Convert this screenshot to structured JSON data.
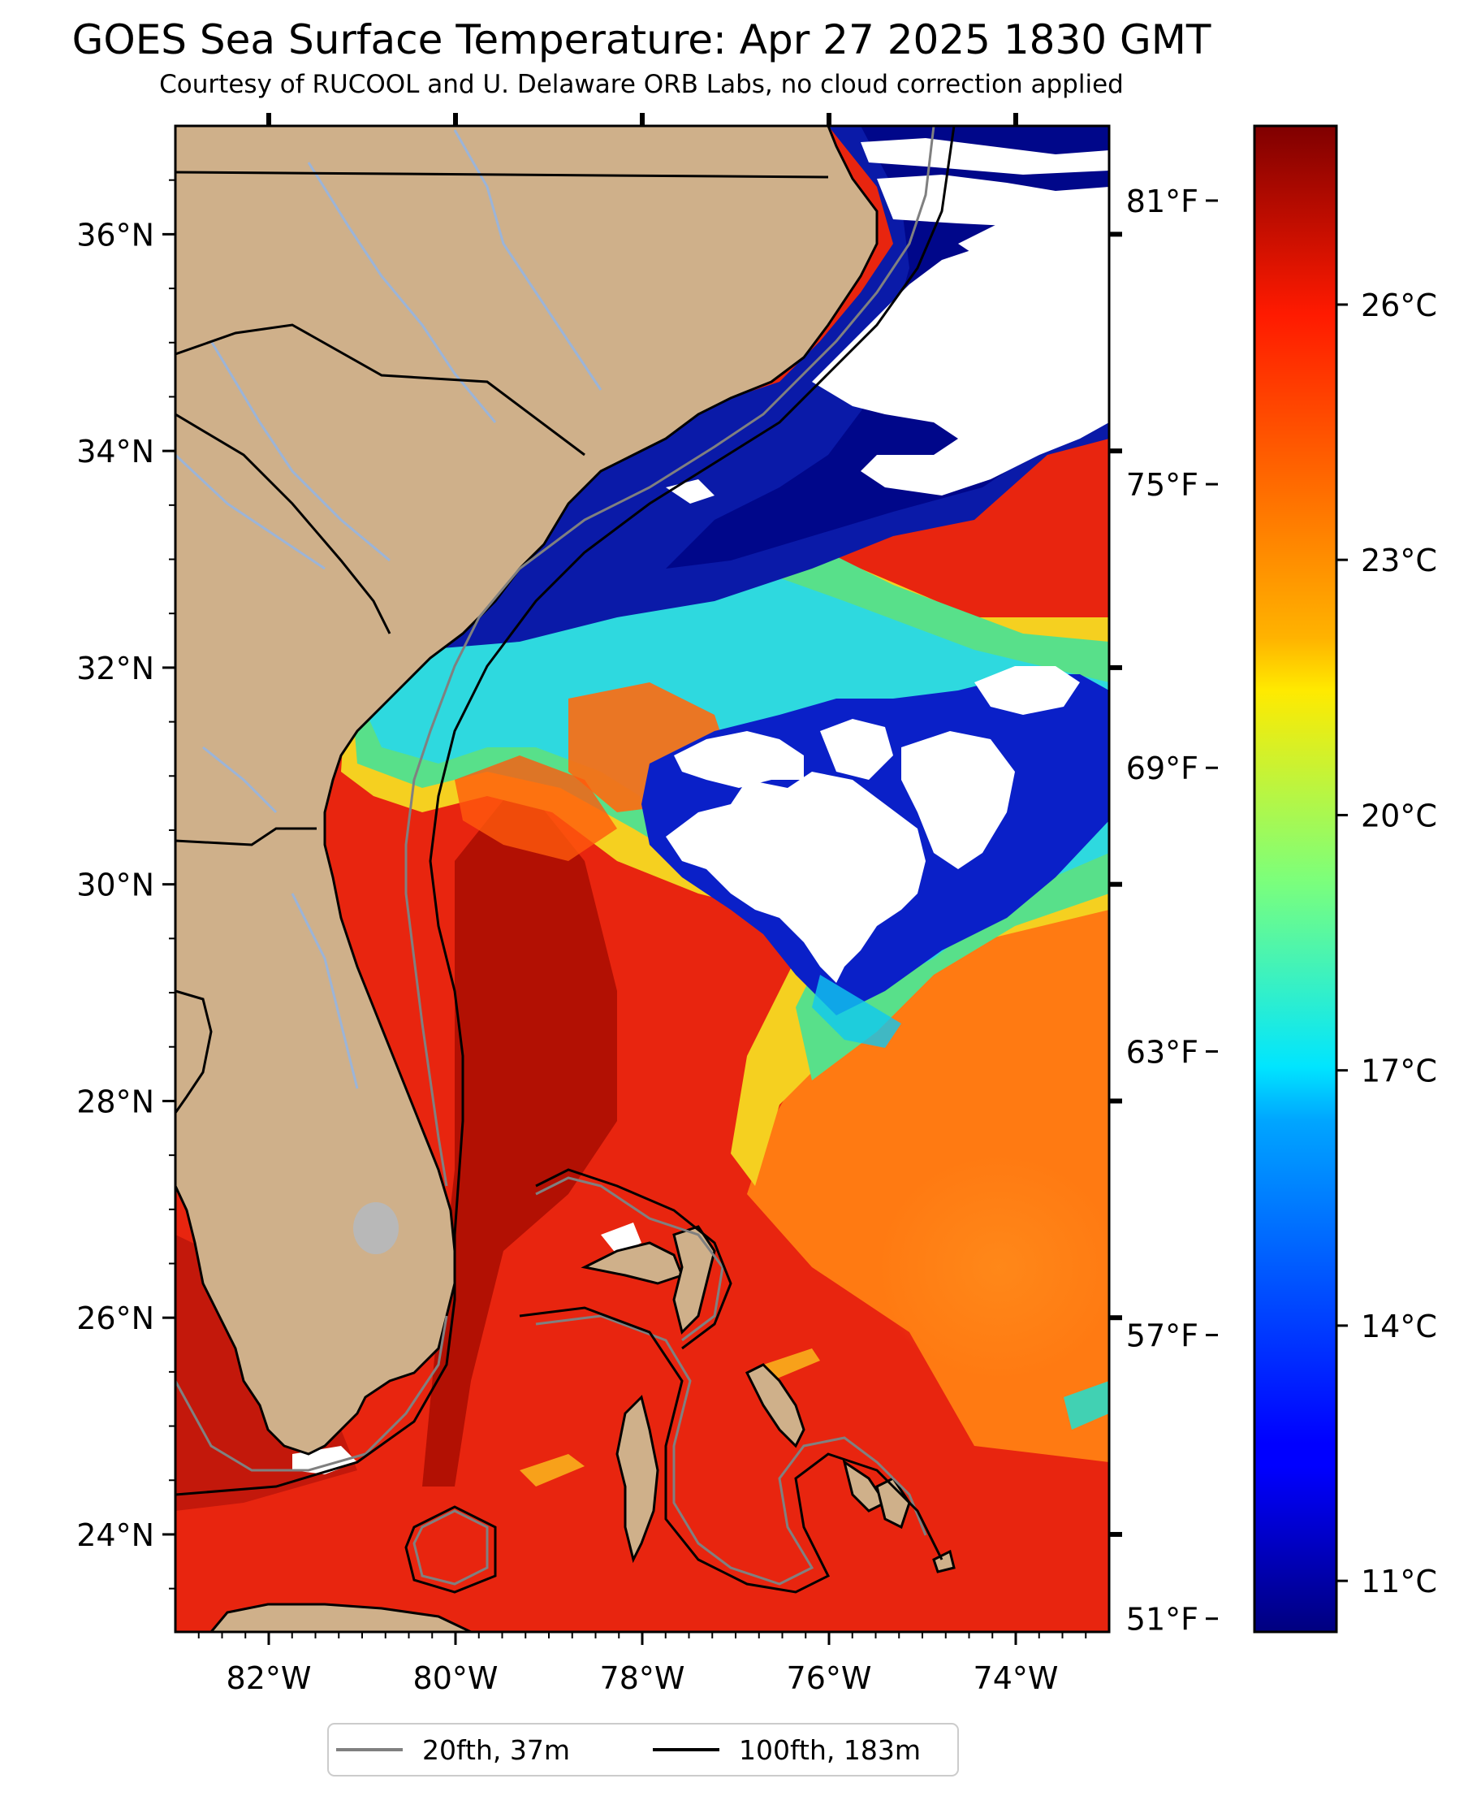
{
  "header": {
    "title": "GOES Sea Surface Temperature: Apr 27 2025 1830 GMT",
    "subtitle": "Courtesy of RUCOOL and U. Delaware ORB Labs, no cloud correction applied"
  },
  "map": {
    "lon_range": [
      -83,
      -73
    ],
    "lat_range": [
      23.1,
      37.0
    ],
    "lat_ticks": [
      {
        "value": 36,
        "label": "36°N"
      },
      {
        "value": 34,
        "label": "34°N"
      },
      {
        "value": 32,
        "label": "32°N"
      },
      {
        "value": 30,
        "label": "30°N"
      },
      {
        "value": 28,
        "label": "28°N"
      },
      {
        "value": 26,
        "label": "26°N"
      },
      {
        "value": 24,
        "label": "24°N"
      }
    ],
    "lon_ticks": [
      {
        "value": -82,
        "label": "82°W"
      },
      {
        "value": -80,
        "label": "80°W"
      },
      {
        "value": -78,
        "label": "78°W"
      },
      {
        "value": -76,
        "label": "76°W"
      },
      {
        "value": -74,
        "label": "74°W"
      }
    ],
    "colors": {
      "land": "#cfb08a",
      "cloud": "#ffffff",
      "warm_sea": "#e8250f",
      "contour_20fth": "#808080",
      "contour_100fth": "#000000",
      "rivers": "#9bb4d8",
      "lake": "#b8b8b8"
    }
  },
  "fahrenheit_scale": [
    {
      "value": 81,
      "label": "81°F"
    },
    {
      "value": 75,
      "label": "75°F"
    },
    {
      "value": 69,
      "label": "69°F"
    },
    {
      "value": 63,
      "label": "63°F"
    },
    {
      "value": 57,
      "label": "57°F"
    },
    {
      "value": 51,
      "label": "51°F"
    }
  ],
  "colorbar": {
    "colormap": "jet",
    "range_c": [
      10.4,
      28.1
    ],
    "ticks": [
      {
        "value": 26,
        "label": "26°C"
      },
      {
        "value": 23,
        "label": "23°C"
      },
      {
        "value": 20,
        "label": "20°C"
      },
      {
        "value": 17,
        "label": "17°C"
      },
      {
        "value": 14,
        "label": "14°C"
      },
      {
        "value": 11,
        "label": "11°C"
      }
    ]
  },
  "legend": {
    "items": [
      {
        "label": "20fth, 37m",
        "color": "#808080"
      },
      {
        "label": "100fth, 183m",
        "color": "#000000"
      }
    ]
  }
}
